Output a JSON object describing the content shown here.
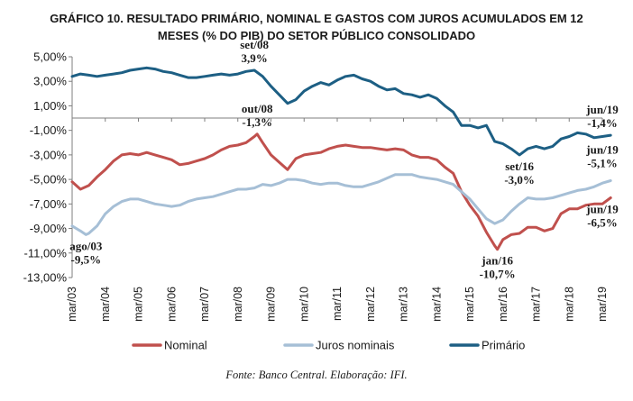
{
  "chart_data": {
    "type": "line",
    "title_lines": [
      "GRÁFICO 10. RESULTADO PRIMÁRIO, NOMINAL E GASTOS COM JUROS ACUMULADOS EM 12",
      "MESES (% DO PIB) DO SETOR PÚBLICO CONSOLIDADO"
    ],
    "ylim": [
      -13,
      5
    ],
    "y_ticks": [
      {
        "value": 5,
        "label": "5,00%"
      },
      {
        "value": 3,
        "label": "3,00%"
      },
      {
        "value": 1,
        "label": "1,00%"
      },
      {
        "value": -1,
        "label": "-1,00%"
      },
      {
        "value": -3,
        "label": "-3,00%"
      },
      {
        "value": -5,
        "label": "-5,00%"
      },
      {
        "value": -7,
        "label": "-7,00%"
      },
      {
        "value": -9,
        "label": "-9,00%"
      },
      {
        "value": -11,
        "label": "-11,00%"
      },
      {
        "value": -13,
        "label": "-13,00%"
      }
    ],
    "x_ticks": [
      "mar/03",
      "mar/04",
      "mar/05",
      "mar/06",
      "mar/07",
      "mar/08",
      "mar/09",
      "mar/10",
      "mar/11",
      "mar/12",
      "mar/13",
      "mar/14",
      "mar/15",
      "mar/16",
      "mar/17",
      "mar/18",
      "mar/19"
    ],
    "series": [
      {
        "name": "Primário",
        "color": "#1d5f84",
        "points": [
          [
            "mar/03",
            3.4
          ],
          [
            "jun/03",
            3.6
          ],
          [
            "set/03",
            3.5
          ],
          [
            "dez/03",
            3.4
          ],
          [
            "mar/04",
            3.5
          ],
          [
            "jun/04",
            3.6
          ],
          [
            "set/04",
            3.7
          ],
          [
            "dez/04",
            3.9
          ],
          [
            "mar/05",
            4.0
          ],
          [
            "jun/05",
            4.1
          ],
          [
            "set/05",
            4.0
          ],
          [
            "dez/05",
            3.8
          ],
          [
            "mar/06",
            3.7
          ],
          [
            "jun/06",
            3.5
          ],
          [
            "set/06",
            3.3
          ],
          [
            "dez/06",
            3.3
          ],
          [
            "mar/07",
            3.4
          ],
          [
            "jun/07",
            3.5
          ],
          [
            "set/07",
            3.6
          ],
          [
            "dez/07",
            3.5
          ],
          [
            "mar/08",
            3.6
          ],
          [
            "jun/08",
            3.8
          ],
          [
            "set/08",
            3.9
          ],
          [
            "dez/08",
            3.4
          ],
          [
            "mar/09",
            2.6
          ],
          [
            "jun/09",
            1.9
          ],
          [
            "set/09",
            1.2
          ],
          [
            "dez/09",
            1.5
          ],
          [
            "mar/10",
            2.2
          ],
          [
            "jun/10",
            2.6
          ],
          [
            "set/10",
            2.9
          ],
          [
            "dez/10",
            2.7
          ],
          [
            "mar/11",
            3.1
          ],
          [
            "jun/11",
            3.4
          ],
          [
            "set/11",
            3.5
          ],
          [
            "dez/11",
            3.2
          ],
          [
            "mar/12",
            3.0
          ],
          [
            "jun/12",
            2.6
          ],
          [
            "set/12",
            2.3
          ],
          [
            "dez/12",
            2.4
          ],
          [
            "mar/13",
            2.0
          ],
          [
            "jun/13",
            1.9
          ],
          [
            "set/13",
            1.7
          ],
          [
            "dez/13",
            1.9
          ],
          [
            "mar/14",
            1.6
          ],
          [
            "jun/14",
            1.0
          ],
          [
            "set/14",
            0.5
          ],
          [
            "dez/14",
            -0.6
          ],
          [
            "mar/15",
            -0.6
          ],
          [
            "jun/15",
            -0.8
          ],
          [
            "set/15",
            -0.6
          ],
          [
            "dez/15",
            -1.9
          ],
          [
            "mar/16",
            -2.1
          ],
          [
            "jun/16",
            -2.5
          ],
          [
            "set/16",
            -3.0
          ],
          [
            "dez/16",
            -2.5
          ],
          [
            "mar/17",
            -2.3
          ],
          [
            "jun/17",
            -2.5
          ],
          [
            "set/17",
            -2.3
          ],
          [
            "dez/17",
            -1.7
          ],
          [
            "mar/18",
            -1.5
          ],
          [
            "jun/18",
            -1.2
          ],
          [
            "set/18",
            -1.3
          ],
          [
            "dez/18",
            -1.6
          ],
          [
            "mar/19",
            -1.5
          ],
          [
            "jun/19",
            -1.4
          ]
        ]
      },
      {
        "name": "Nominal",
        "color": "#c0504d",
        "points": [
          [
            "mar/03",
            -5.2
          ],
          [
            "jun/03",
            -5.8
          ],
          [
            "set/03",
            -5.5
          ],
          [
            "dez/03",
            -4.8
          ],
          [
            "mar/04",
            -4.2
          ],
          [
            "jun/04",
            -3.5
          ],
          [
            "set/04",
            -3.0
          ],
          [
            "dez/04",
            -2.9
          ],
          [
            "mar/05",
            -3.0
          ],
          [
            "jun/05",
            -2.8
          ],
          [
            "set/05",
            -3.0
          ],
          [
            "dez/05",
            -3.2
          ],
          [
            "mar/06",
            -3.4
          ],
          [
            "jun/06",
            -3.8
          ],
          [
            "set/06",
            -3.7
          ],
          [
            "dez/06",
            -3.5
          ],
          [
            "mar/07",
            -3.3
          ],
          [
            "jun/07",
            -3.0
          ],
          [
            "set/07",
            -2.6
          ],
          [
            "dez/07",
            -2.3
          ],
          [
            "mar/08",
            -2.2
          ],
          [
            "jun/08",
            -2.0
          ],
          [
            "set/08",
            -1.5
          ],
          [
            "out/08",
            -1.3
          ],
          [
            "dez/08",
            -2.0
          ],
          [
            "mar/09",
            -3.0
          ],
          [
            "jun/09",
            -3.6
          ],
          [
            "set/09",
            -4.2
          ],
          [
            "dez/09",
            -3.3
          ],
          [
            "mar/10",
            -3.0
          ],
          [
            "jun/10",
            -2.9
          ],
          [
            "set/10",
            -2.8
          ],
          [
            "dez/10",
            -2.5
          ],
          [
            "mar/11",
            -2.3
          ],
          [
            "jun/11",
            -2.2
          ],
          [
            "set/11",
            -2.3
          ],
          [
            "dez/11",
            -2.4
          ],
          [
            "mar/12",
            -2.4
          ],
          [
            "jun/12",
            -2.5
          ],
          [
            "set/12",
            -2.6
          ],
          [
            "dez/12",
            -2.5
          ],
          [
            "mar/13",
            -2.6
          ],
          [
            "jun/13",
            -3.0
          ],
          [
            "set/13",
            -3.2
          ],
          [
            "dez/13",
            -3.2
          ],
          [
            "mar/14",
            -3.4
          ],
          [
            "jun/14",
            -4.0
          ],
          [
            "set/14",
            -4.5
          ],
          [
            "dez/14",
            -6.0
          ],
          [
            "mar/15",
            -7.1
          ],
          [
            "jun/15",
            -8.0
          ],
          [
            "set/15",
            -9.3
          ],
          [
            "dez/15",
            -10.4
          ],
          [
            "jan/16",
            -10.7
          ],
          [
            "mar/16",
            -9.9
          ],
          [
            "jun/16",
            -9.5
          ],
          [
            "set/16",
            -9.4
          ],
          [
            "dez/16",
            -8.9
          ],
          [
            "mar/17",
            -8.9
          ],
          [
            "jun/17",
            -9.2
          ],
          [
            "set/17",
            -9.0
          ],
          [
            "dez/17",
            -7.8
          ],
          [
            "mar/18",
            -7.4
          ],
          [
            "jun/18",
            -7.4
          ],
          [
            "set/18",
            -7.1
          ],
          [
            "dez/18",
            -7.0
          ],
          [
            "mar/19",
            -7.0
          ],
          [
            "jun/19",
            -6.5
          ]
        ]
      },
      {
        "name": "Juros nominais",
        "color": "#a6bfd6",
        "points": [
          [
            "mar/03",
            -8.8
          ],
          [
            "jun/03",
            -9.2
          ],
          [
            "ago/03",
            -9.5
          ],
          [
            "set/03",
            -9.4
          ],
          [
            "dez/03",
            -8.8
          ],
          [
            "mar/04",
            -7.8
          ],
          [
            "jun/04",
            -7.2
          ],
          [
            "set/04",
            -6.8
          ],
          [
            "dez/04",
            -6.6
          ],
          [
            "mar/05",
            -6.6
          ],
          [
            "jun/05",
            -6.8
          ],
          [
            "set/05",
            -7.0
          ],
          [
            "dez/05",
            -7.1
          ],
          [
            "mar/06",
            -7.2
          ],
          [
            "jun/06",
            -7.1
          ],
          [
            "set/06",
            -6.8
          ],
          [
            "dez/06",
            -6.6
          ],
          [
            "mar/07",
            -6.5
          ],
          [
            "jun/07",
            -6.4
          ],
          [
            "set/07",
            -6.2
          ],
          [
            "dez/07",
            -6.0
          ],
          [
            "mar/08",
            -5.8
          ],
          [
            "jun/08",
            -5.8
          ],
          [
            "set/08",
            -5.7
          ],
          [
            "dez/08",
            -5.4
          ],
          [
            "mar/09",
            -5.5
          ],
          [
            "jun/09",
            -5.3
          ],
          [
            "set/09",
            -5.0
          ],
          [
            "dez/09",
            -5.0
          ],
          [
            "mar/10",
            -5.1
          ],
          [
            "jun/10",
            -5.3
          ],
          [
            "set/10",
            -5.4
          ],
          [
            "dez/10",
            -5.3
          ],
          [
            "mar/11",
            -5.3
          ],
          [
            "jun/11",
            -5.5
          ],
          [
            "set/11",
            -5.6
          ],
          [
            "dez/11",
            -5.6
          ],
          [
            "mar/12",
            -5.4
          ],
          [
            "jun/12",
            -5.2
          ],
          [
            "set/12",
            -4.9
          ],
          [
            "dez/12",
            -4.6
          ],
          [
            "mar/13",
            -4.6
          ],
          [
            "jun/13",
            -4.6
          ],
          [
            "set/13",
            -4.8
          ],
          [
            "dez/13",
            -4.9
          ],
          [
            "mar/14",
            -5.0
          ],
          [
            "jun/14",
            -5.2
          ],
          [
            "set/14",
            -5.4
          ],
          [
            "dez/14",
            -6.0
          ],
          [
            "mar/15",
            -6.6
          ],
          [
            "jun/15",
            -7.4
          ],
          [
            "set/15",
            -8.2
          ],
          [
            "dez/15",
            -8.6
          ],
          [
            "mar/16",
            -8.3
          ],
          [
            "jun/16",
            -7.6
          ],
          [
            "set/16",
            -7.0
          ],
          [
            "dez/16",
            -6.5
          ],
          [
            "mar/17",
            -6.6
          ],
          [
            "jun/17",
            -6.6
          ],
          [
            "set/17",
            -6.5
          ],
          [
            "dez/17",
            -6.3
          ],
          [
            "mar/18",
            -6.1
          ],
          [
            "jun/18",
            -5.9
          ],
          [
            "set/18",
            -5.8
          ],
          [
            "dez/18",
            -5.6
          ],
          [
            "mar/19",
            -5.3
          ],
          [
            "jun/19",
            -5.1
          ]
        ]
      }
    ],
    "annotations": [
      {
        "at": "set/08",
        "value": 3.9,
        "label_lines": [
          "set/08",
          "3,9%"
        ],
        "anchor": "above"
      },
      {
        "at": "out/08",
        "value": -1.3,
        "label_lines": [
          "out/08",
          "-1,3%"
        ],
        "anchor": "above"
      },
      {
        "at": "ago/03",
        "value": -9.5,
        "label_lines": [
          "ago/03",
          "-9,5%"
        ],
        "anchor": "below"
      },
      {
        "at": "jan/16",
        "value": -10.7,
        "label_lines": [
          "jan/16",
          "-10,7%"
        ],
        "anchor": "below"
      },
      {
        "at": "set/16",
        "value": -3.0,
        "label_lines": [
          "set/16",
          "-3,0%"
        ],
        "anchor": "below"
      },
      {
        "at": "jun/19",
        "value": -1.4,
        "label_lines": [
          "jun/19",
          "-1,4%"
        ],
        "anchor": "above"
      },
      {
        "at": "jun/19",
        "value": -5.1,
        "label_lines": [
          "jun/19",
          "-5,1%"
        ],
        "anchor": "above-right"
      },
      {
        "at": "jun/19",
        "value": -6.5,
        "label_lines": [
          "jun/19",
          "-6,5%"
        ],
        "anchor": "below"
      }
    ],
    "legend": [
      {
        "name": "Nominal",
        "color": "#c0504d"
      },
      {
        "name": "Juros nominais",
        "color": "#a6bfd6"
      },
      {
        "name": "Primário",
        "color": "#1d5f84"
      }
    ],
    "legend_position": "bottom",
    "grid": false
  },
  "source": "Fonte: Banco Central. Elaboração: IFI."
}
